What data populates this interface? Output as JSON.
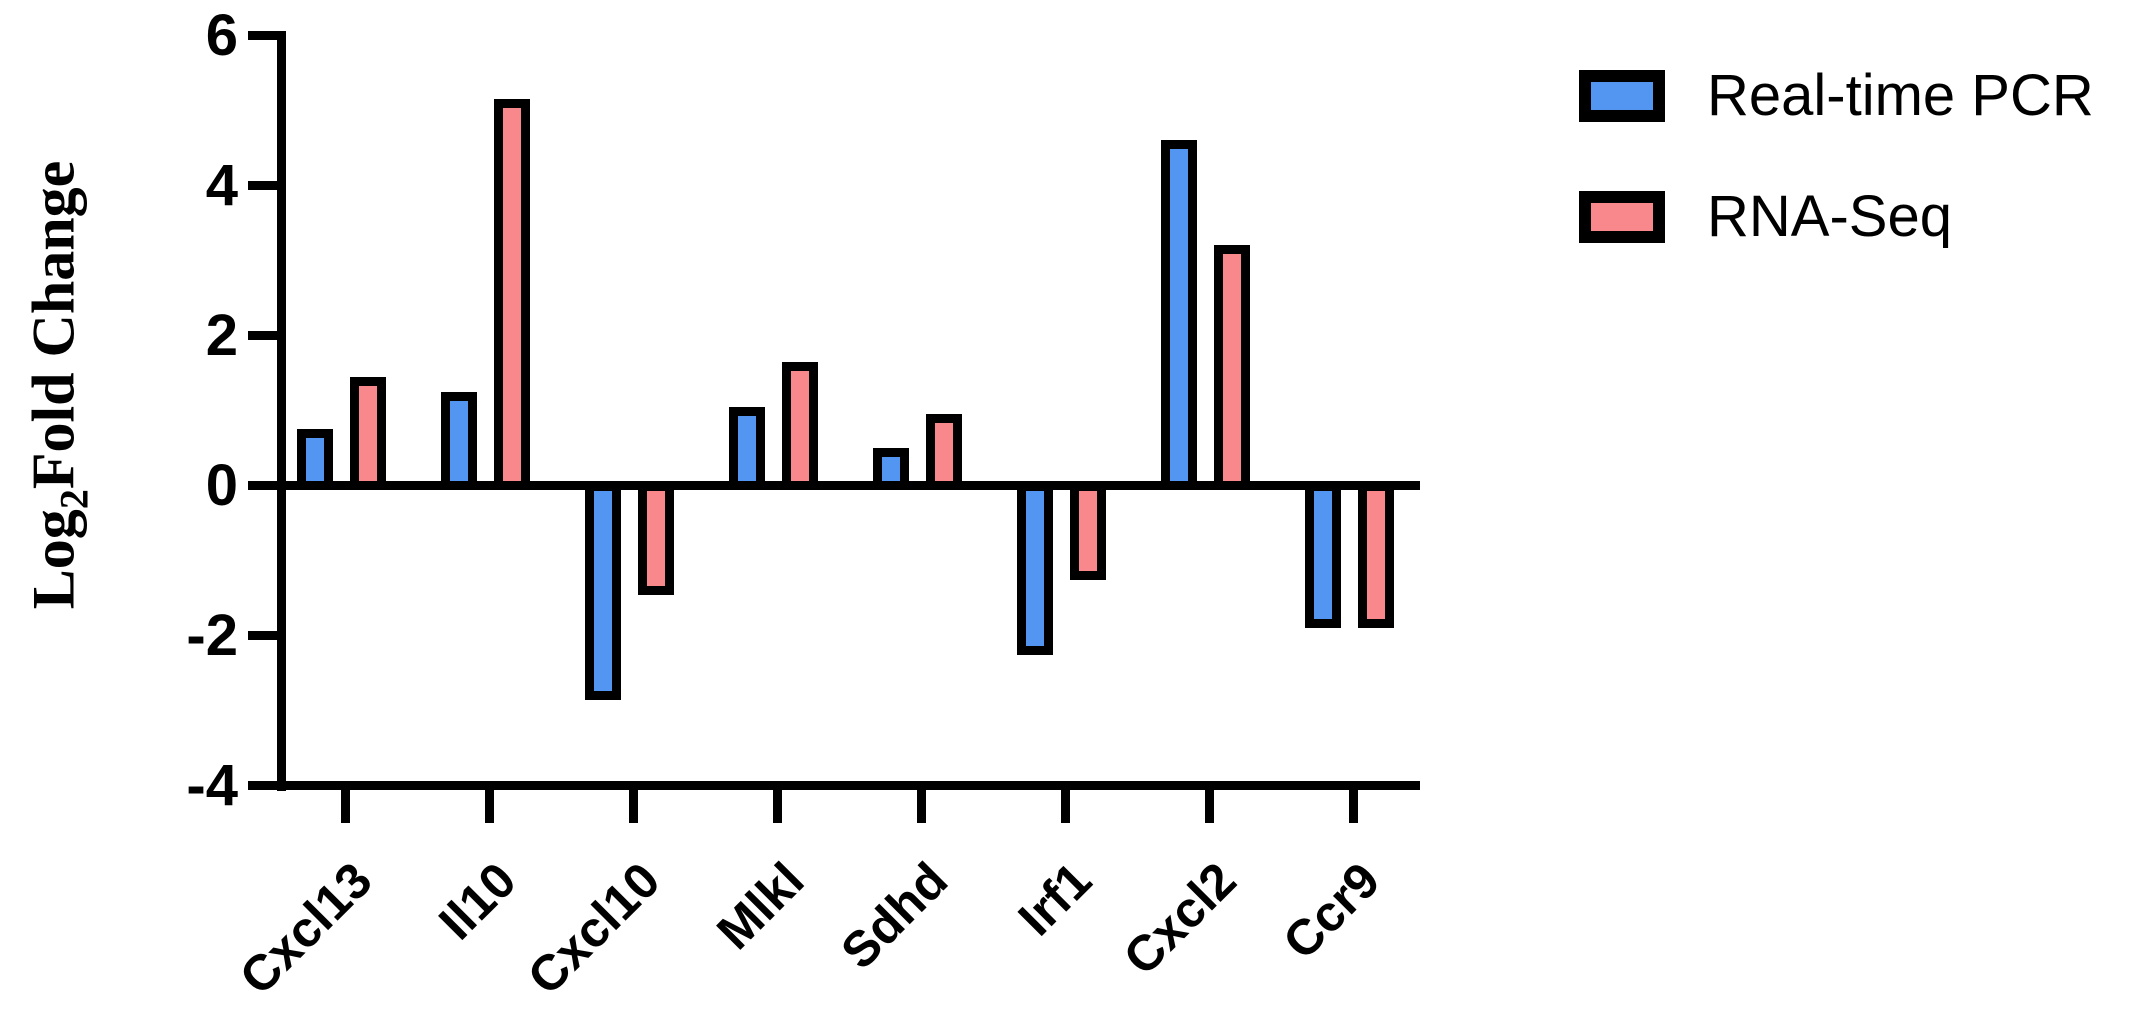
{
  "figure": {
    "background": "#ffffff",
    "axis_color": "#000000"
  },
  "y_axis": {
    "title_pre": "Log",
    "title_sub": "2",
    "title_post": "Fold Change"
  },
  "chart_data": {
    "type": "bar",
    "title": "",
    "xlabel": "",
    "ylabel": "Log2 Fold Change",
    "categories": [
      "Cxcl13",
      "Il10",
      "Cxcl10",
      "Mlkl",
      "Sdhd",
      "Irf1",
      "Cxcl2",
      "Ccr9"
    ],
    "series": [
      {
        "name": "Real-time PCR",
        "color": "#5296F2",
        "values": [
          0.7,
          1.2,
          -2.8,
          1.0,
          0.45,
          -2.2,
          4.55,
          -1.85
        ]
      },
      {
        "name": "RNA-Seq",
        "color": "#F9888C",
        "values": [
          1.4,
          5.1,
          -1.4,
          1.6,
          0.9,
          -1.2,
          3.15,
          -1.85
        ]
      }
    ],
    "ylim": [
      -4,
      6
    ],
    "yticks": [
      6,
      4,
      2,
      0,
      -2,
      -4
    ],
    "bar_outline_color": "#000000",
    "grid": false,
    "baseline": 0,
    "legend_position": "top-right",
    "x_label_rotation_deg": 45
  }
}
